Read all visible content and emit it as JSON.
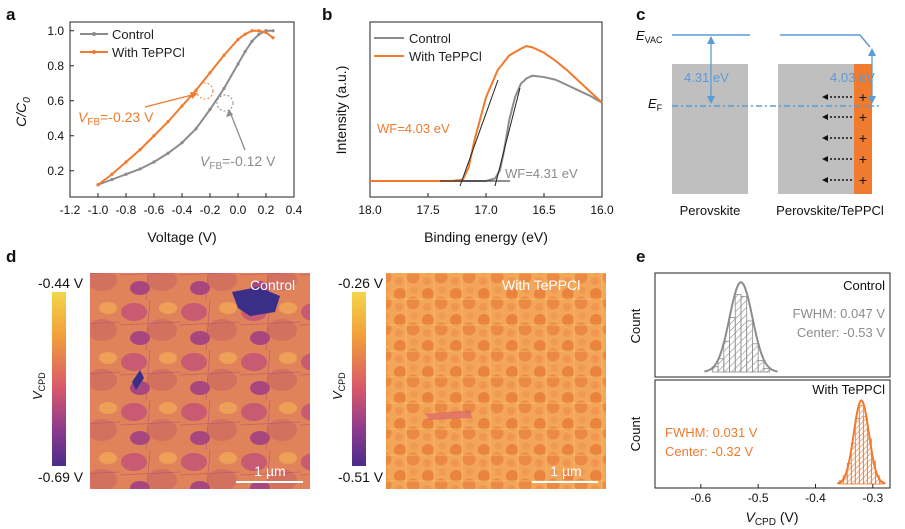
{
  "panels": {
    "a": {
      "letter": "a",
      "ylabel_main": "C/C",
      "ylabel_sub": "0",
      "xlabel": "Voltage (V)",
      "xticks": [
        "-1.2",
        "-1.0",
        "-0.8",
        "-0.6",
        "-0.4",
        "-0.2",
        "0.0",
        "0.2",
        "0.4"
      ],
      "yticks": [
        "0.2",
        "0.4",
        "0.6",
        "0.8",
        "1.0"
      ],
      "legend": [
        "Control",
        "With TePPCl"
      ],
      "ann_orange_v": "V",
      "ann_orange_sub": "FB",
      "ann_orange_val": "=-0.23 V",
      "ann_gray_v": "V",
      "ann_gray_sub": "FB",
      "ann_gray_val": "=-0.12 V"
    },
    "b": {
      "letter": "b",
      "ylabel": "Intensity (a.u.)",
      "xlabel": "Binding energy (eV)",
      "xticks": [
        "18.0",
        "17.5",
        "17.0",
        "16.5",
        "16.0"
      ],
      "legend": [
        "Control",
        "With TePPCl"
      ],
      "wf_orange": "WF=4.03 eV",
      "wf_gray": "WF=4.31 eV"
    },
    "c": {
      "letter": "c",
      "evac_main": "E",
      "evac_sub": "VAC",
      "ef_main": "E",
      "ef_sub": "F",
      "gap_left": "4.31 eV",
      "gap_right": "4.03 eV",
      "label_left": "Perovskite",
      "label_right": "Perovskite/TePPCl",
      "plus": "+"
    },
    "d": {
      "letter": "d",
      "left": {
        "top": "-0.44 V",
        "bottom": "-0.69 V",
        "cb_label": "V",
        "cb_sub": "CPD",
        "title": "Control",
        "scale": "1 µm"
      },
      "right": {
        "top": "-0.26 V",
        "bottom": "-0.51 V",
        "cb_label": "V",
        "cb_sub": "CPD",
        "title": "With TePPCl",
        "scale": "1 µm"
      }
    },
    "e": {
      "letter": "e",
      "ylabel": "Count",
      "xlabel_main": "V",
      "xlabel_sub": "CPD",
      "xlabel_unit": " (V)",
      "xticks": [
        "-0.6",
        "-0.5",
        "-0.4",
        "-0.3"
      ],
      "top": {
        "title": "Control",
        "fwhm": "FWHM: 0.047 V",
        "center": "Center: -0.53 V"
      },
      "bottom": {
        "title": "With TePPCl",
        "fwhm": "FWHM: 0.031 V",
        "center": "Center: -0.32 V"
      }
    }
  },
  "colors": {
    "orange": "#f07a2e",
    "gray": "#8c8c8c",
    "blue": "#5b9bd5",
    "perovskite": "#bfbfbf",
    "ink": "#222222"
  },
  "chart_data": [
    {
      "type": "line",
      "panel": "a",
      "xlabel": "Voltage (V)",
      "ylabel": "C/C0",
      "xlim": [
        -1.2,
        0.4
      ],
      "ylim": [
        0.05,
        1.05
      ],
      "series": [
        {
          "name": "Control",
          "x": [
            -1.0,
            -0.9,
            -0.8,
            -0.7,
            -0.6,
            -0.5,
            -0.4,
            -0.3,
            -0.2,
            -0.1,
            0.0,
            0.05,
            0.1,
            0.15,
            0.2,
            0.25
          ],
          "y": [
            0.12,
            0.15,
            0.18,
            0.21,
            0.25,
            0.3,
            0.36,
            0.44,
            0.55,
            0.67,
            0.81,
            0.88,
            0.94,
            0.98,
            1.0,
            1.0
          ]
        },
        {
          "name": "With TePPCl",
          "x": [
            -1.0,
            -0.9,
            -0.8,
            -0.7,
            -0.6,
            -0.5,
            -0.4,
            -0.3,
            -0.2,
            -0.1,
            0.0,
            0.05,
            0.1,
            0.15,
            0.2,
            0.25
          ],
          "y": [
            0.12,
            0.18,
            0.25,
            0.32,
            0.4,
            0.48,
            0.57,
            0.66,
            0.76,
            0.86,
            0.95,
            0.98,
            1.0,
            1.0,
            0.99,
            0.96
          ]
        }
      ]
    },
    {
      "type": "line",
      "panel": "b",
      "xlabel": "Binding energy (eV)",
      "ylabel": "Intensity (a.u.)",
      "xlim": [
        18.0,
        16.0
      ],
      "series": [
        {
          "name": "Control",
          "x": [
            18.0,
            17.5,
            17.2,
            17.0,
            16.92,
            16.88,
            16.85,
            16.8,
            16.75,
            16.7,
            16.65,
            16.6,
            16.5,
            16.4,
            16.3,
            16.2,
            16.1,
            16.0
          ],
          "y": [
            0.0,
            0.0,
            0.0,
            0.0,
            0.02,
            0.08,
            0.2,
            0.45,
            0.62,
            0.72,
            0.76,
            0.78,
            0.77,
            0.75,
            0.71,
            0.67,
            0.63,
            0.58
          ]
        },
        {
          "name": "With TePPCl",
          "x": [
            18.0,
            17.5,
            17.3,
            17.2,
            17.15,
            17.1,
            17.0,
            16.9,
            16.8,
            16.7,
            16.65,
            16.6,
            16.5,
            16.4,
            16.3,
            16.2,
            16.1,
            16.0
          ],
          "y": [
            0.0,
            0.0,
            0.0,
            0.01,
            0.1,
            0.3,
            0.62,
            0.82,
            0.93,
            0.98,
            1.0,
            0.99,
            0.95,
            0.89,
            0.82,
            0.74,
            0.66,
            0.58
          ]
        }
      ]
    },
    {
      "type": "bar",
      "panel": "e-top",
      "title": "Control",
      "x": [
        -0.575,
        -0.565,
        -0.555,
        -0.545,
        -0.535,
        -0.525,
        -0.515,
        -0.505,
        -0.495,
        -0.485
      ],
      "values": [
        0.06,
        0.15,
        0.35,
        0.62,
        0.88,
        0.86,
        0.58,
        0.32,
        0.13,
        0.04
      ],
      "fit_center": -0.53,
      "fit_fwhm": 0.047
    },
    {
      "type": "bar",
      "panel": "e-bottom",
      "title": "With TePPCl",
      "x": [
        -0.355,
        -0.348,
        -0.341,
        -0.334,
        -0.327,
        -0.32,
        -0.313,
        -0.306,
        -0.299,
        -0.292,
        -0.285
      ],
      "values": [
        0.04,
        0.1,
        0.25,
        0.5,
        0.8,
        0.96,
        0.82,
        0.55,
        0.28,
        0.1,
        0.03
      ],
      "fit_center": -0.32,
      "fit_fwhm": 0.031
    }
  ]
}
